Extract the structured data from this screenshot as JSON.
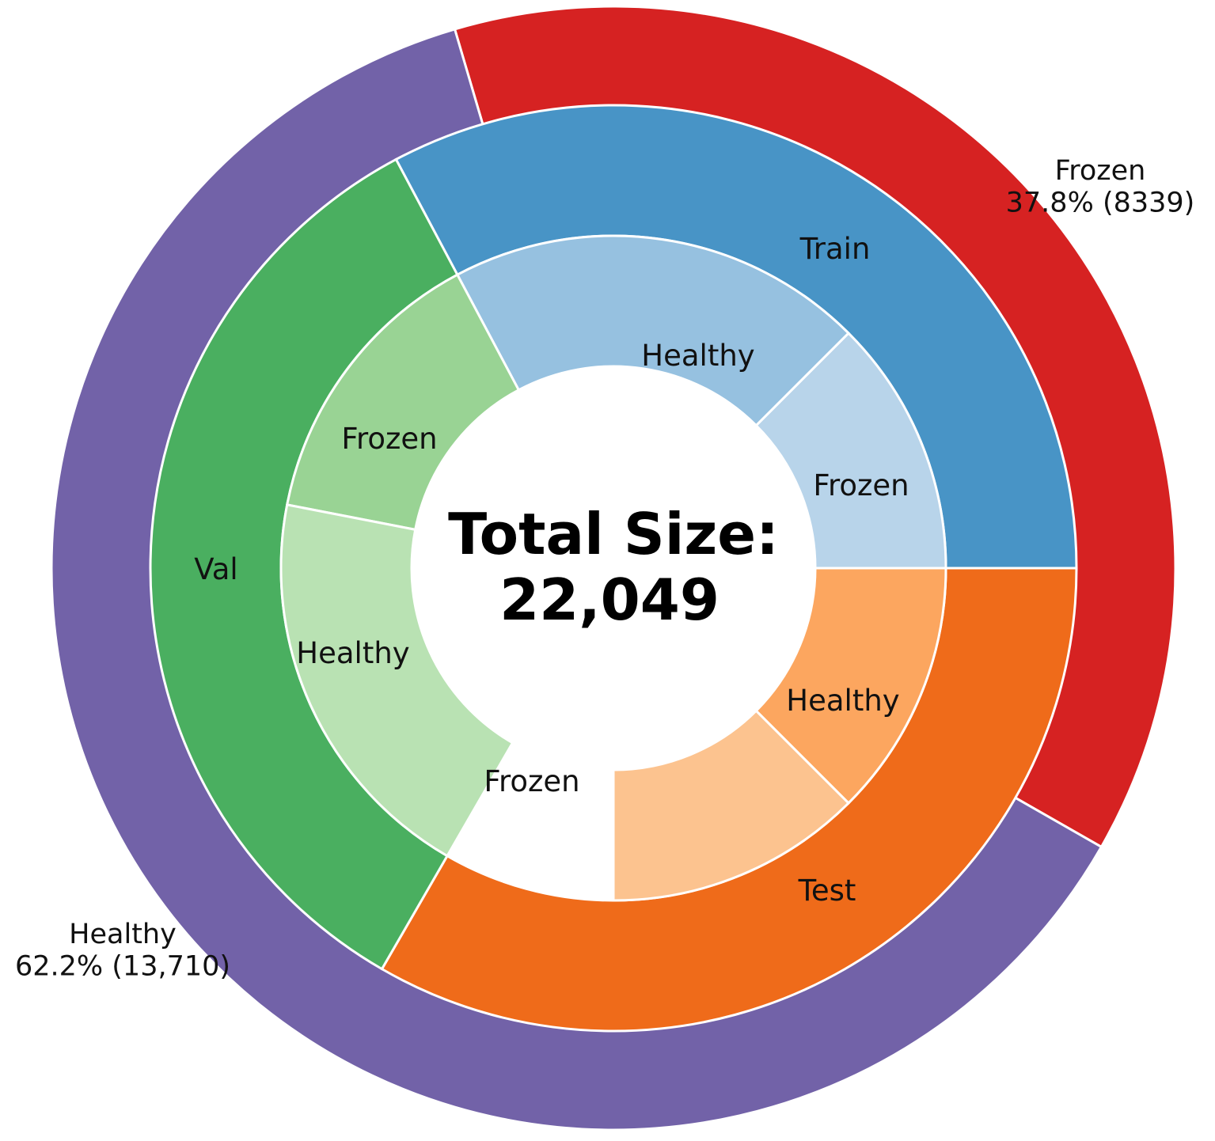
{
  "chart_data": {
    "type": "sunburst",
    "center_text": [
      "Total Size:",
      "22,049"
    ],
    "outer": [
      {
        "label": "Frozen",
        "percent": 37.8,
        "value": 8339,
        "text": "37.8% (8339)",
        "color": "#d62222"
      },
      {
        "label": "Healthy",
        "percent": 62.2,
        "value": 13710,
        "text": "62.2% (13,710)",
        "color": "#7262a8"
      }
    ],
    "middle": [
      {
        "label": "Train",
        "color": "#4894c6"
      },
      {
        "label": "Test",
        "color": "#ef6b1a"
      },
      {
        "label": "Val",
        "color": "#4aaf60"
      }
    ],
    "inner": [
      {
        "label": "Frozen",
        "group": "Train",
        "color": "#b8d4ea"
      },
      {
        "label": "Healthy",
        "group": "Train",
        "color": "#96c1e0"
      },
      {
        "label": "Healthy",
        "group": "Test",
        "color": "#fca65f"
      },
      {
        "label": "Frozen",
        "group": "Test",
        "color": "#fcc38f"
      },
      {
        "label": "Frozen",
        "group": "Val",
        "color": "#99d394"
      },
      {
        "label": "Healthy",
        "group": "Val",
        "color": "#b9e2b3"
      }
    ]
  }
}
